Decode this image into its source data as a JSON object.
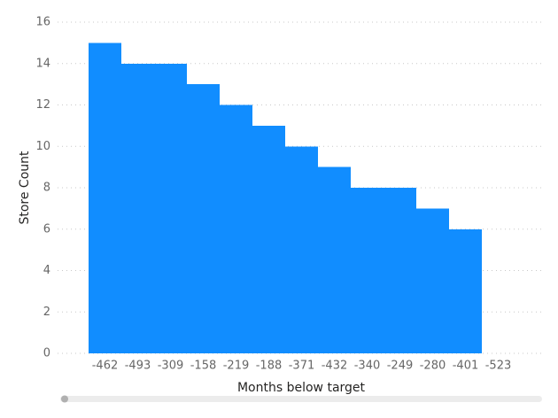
{
  "chart_data": {
    "type": "bar",
    "x_label": "Months below target",
    "y_label": "Store Count",
    "categories": [
      "-462",
      "-493",
      "-309",
      "-158",
      "-219",
      "-188",
      "-371",
      "-432",
      "-340",
      "-249",
      "-280",
      "-401",
      "-523"
    ],
    "values": [
      15,
      14,
      14,
      13,
      12,
      11,
      10,
      9,
      8,
      8,
      7,
      6,
      0
    ],
    "color": "#118dff",
    "ylim": [
      0,
      16
    ],
    "yticks": [
      0,
      2,
      4,
      6,
      8,
      10,
      12,
      14,
      16
    ],
    "grid": true
  }
}
